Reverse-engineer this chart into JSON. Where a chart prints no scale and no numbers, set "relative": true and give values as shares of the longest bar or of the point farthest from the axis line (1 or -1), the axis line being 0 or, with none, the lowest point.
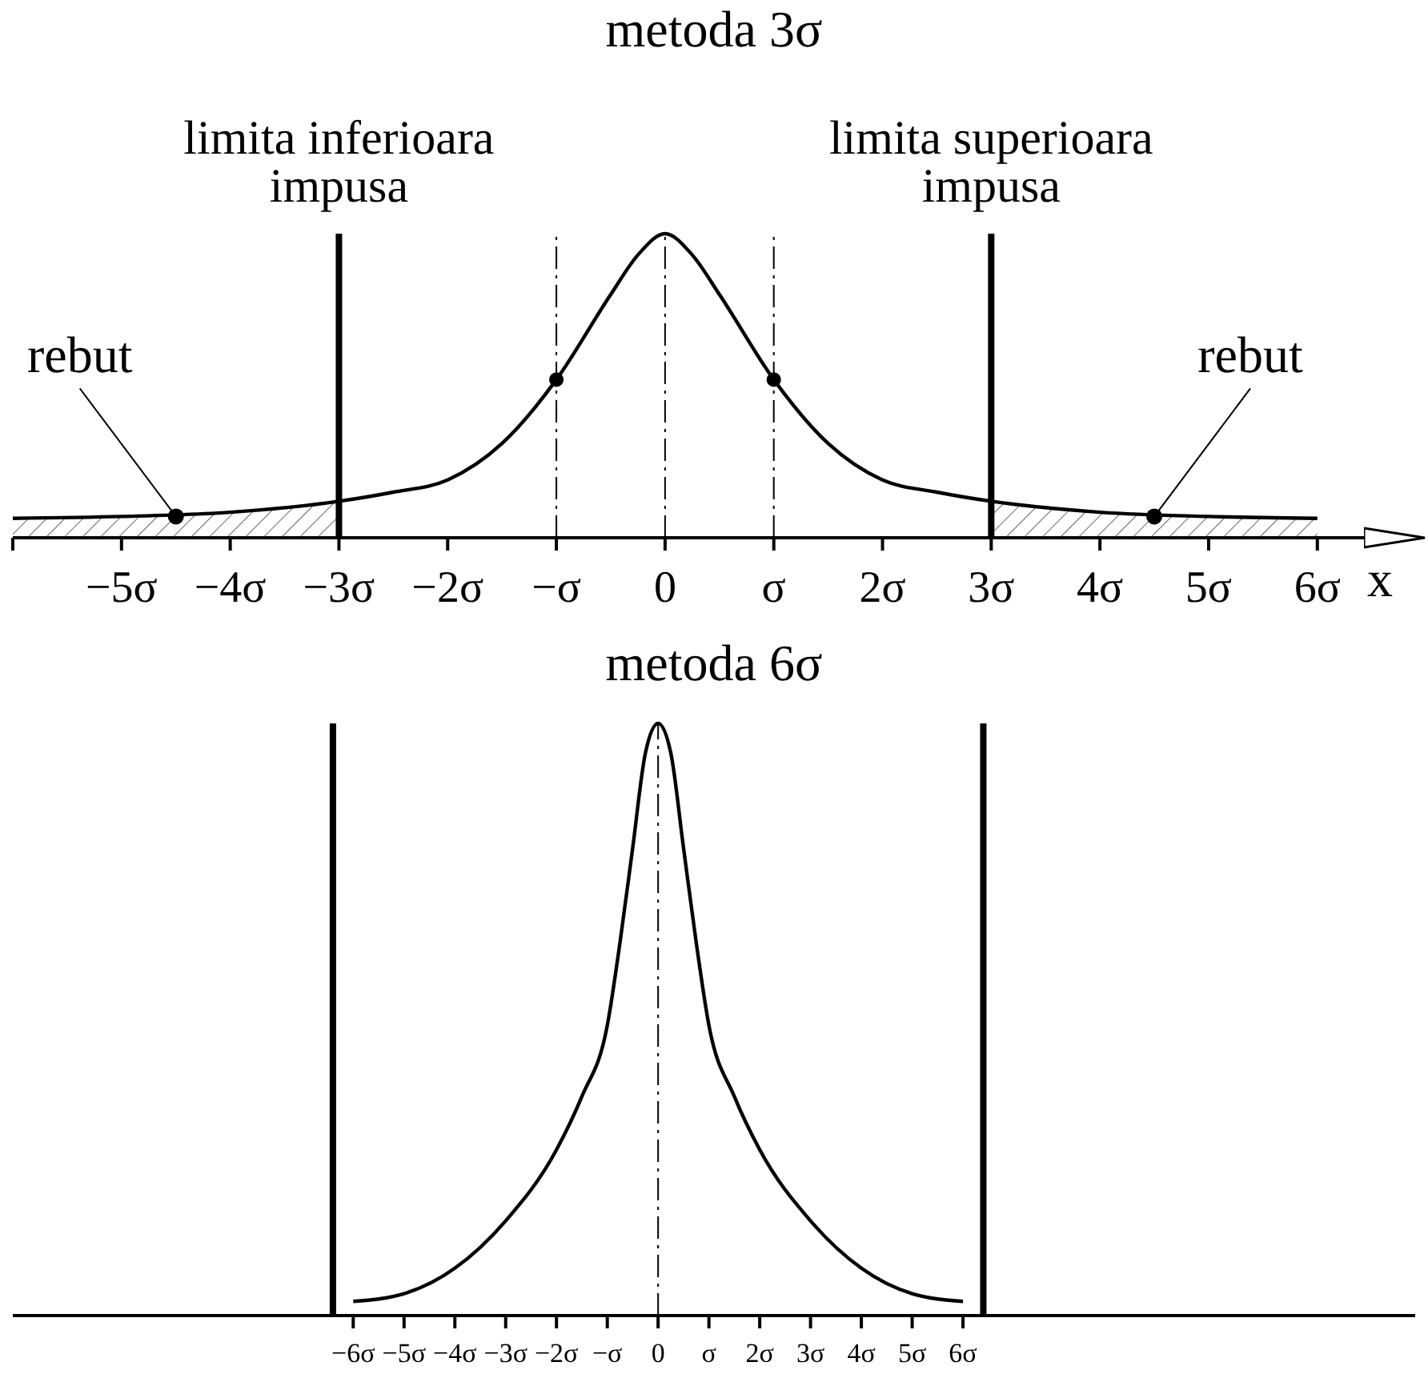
{
  "chart_data": [
    {
      "type": "line",
      "title": "metoda 3σ",
      "xlabel": "x",
      "relative": true,
      "xlim": [
        -6,
        6.9
      ],
      "xticks": [
        {
          "value": -6,
          "label": null
        },
        {
          "value": -5,
          "label": "−5σ"
        },
        {
          "value": -4,
          "label": "−4σ"
        },
        {
          "value": -3,
          "label": "−3σ"
        },
        {
          "value": -2,
          "label": "−2σ"
        },
        {
          "value": -1,
          "label": "−σ"
        },
        0,
        {
          "value": 1,
          "label": "σ"
        },
        {
          "value": 2,
          "label": "2σ"
        },
        {
          "value": 3,
          "label": "3σ"
        },
        {
          "value": 4,
          "label": "4σ"
        },
        {
          "value": 5,
          "label": "5σ"
        },
        {
          "value": 6,
          "label": "6σ"
        }
      ],
      "series": [
        {
          "color": "#000000",
          "x": [
            -6,
            -5,
            -4,
            -3,
            -2.5,
            -2,
            -1.5,
            -1,
            -0.5,
            -0.25,
            0,
            0.25,
            0.5,
            1,
            1.5,
            2,
            2.5,
            3,
            4,
            5,
            6
          ],
          "values": [
            0.064,
            0.07,
            0.084,
            0.12,
            0.15,
            0.19,
            0.31,
            0.52,
            0.8,
            0.93,
            1,
            0.93,
            0.8,
            0.52,
            0.31,
            0.19,
            0.15,
            0.12,
            0.084,
            0.07,
            0.064
          ]
        },
        {
          "type": "scatter",
          "color": "#000000",
          "marker": "circle",
          "x": [
            -1,
            1
          ],
          "values": [
            0.52,
            0.52
          ]
        },
        {
          "type": "area",
          "color": "#000000",
          "x": [
            -6,
            -5,
            -4,
            -3
          ],
          "values": [
            0.064,
            0.07,
            0.084,
            0.12
          ]
        },
        {
          "type": "area",
          "color": "#000000",
          "x": [
            3,
            4,
            5,
            6
          ],
          "values": [
            0.12,
            0.084,
            0.07,
            0.064
          ]
        }
      ],
      "ref_lines": [
        {
          "axis": "x",
          "value": -3,
          "label": "limita inferioara impusa",
          "color": "#000000"
        },
        {
          "axis": "x",
          "value": 3,
          "label": "limita superioara impusa",
          "color": "#000000"
        },
        {
          "axis": "x",
          "value": -1,
          "color": "#000000",
          "line_style": "dashed"
        },
        {
          "axis": "x",
          "value": 0,
          "color": "#000000",
          "line_style": "dashed"
        },
        {
          "axis": "x",
          "value": 1,
          "color": "#000000",
          "line_style": "dashed"
        }
      ],
      "annotations": [
        {
          "text": "rebut",
          "x": -4.5,
          "y": 0.07
        },
        {
          "text": "rebut",
          "x": 4.5,
          "y": 0.07
        }
      ]
    },
    {
      "type": "line",
      "title": "metoda 6σ",
      "relative": true,
      "xlim": [
        -12.7,
        14.9
      ],
      "xticks": [
        {
          "value": -6,
          "label": "−6σ"
        },
        {
          "value": -5,
          "label": "−5σ"
        },
        {
          "value": -4,
          "label": "−4σ"
        },
        {
          "value": -3,
          "label": "−3σ"
        },
        {
          "value": -2,
          "label": "−2σ"
        },
        {
          "value": -1,
          "label": "−σ"
        },
        0,
        {
          "value": 1,
          "label": "σ"
        },
        {
          "value": 2,
          "label": "2σ"
        },
        {
          "value": 3,
          "label": "3σ"
        },
        {
          "value": 4,
          "label": "4σ"
        },
        {
          "value": 5,
          "label": "5σ"
        },
        {
          "value": 6,
          "label": "6σ"
        }
      ],
      "series": [
        {
          "color": "#000000",
          "x": [
            -6,
            -5,
            -4,
            -3,
            -2,
            -1.5,
            -1,
            -0.75,
            -0.5,
            -0.25,
            0,
            0.25,
            0.5,
            0.75,
            1,
            1.5,
            2,
            3,
            4,
            5,
            6
          ],
          "values": [
            0.024,
            0.037,
            0.08,
            0.16,
            0.28,
            0.37,
            0.49,
            0.63,
            0.79,
            0.95,
            1,
            0.95,
            0.79,
            0.63,
            0.49,
            0.37,
            0.28,
            0.16,
            0.08,
            0.037,
            0.024
          ]
        }
      ],
      "ref_lines": [
        {
          "axis": "x",
          "value": -6.4,
          "color": "#000000"
        },
        {
          "axis": "x",
          "value": 6.4,
          "color": "#000000"
        },
        {
          "axis": "x",
          "value": 0,
          "color": "#000000",
          "line_style": "dashed"
        }
      ]
    }
  ]
}
